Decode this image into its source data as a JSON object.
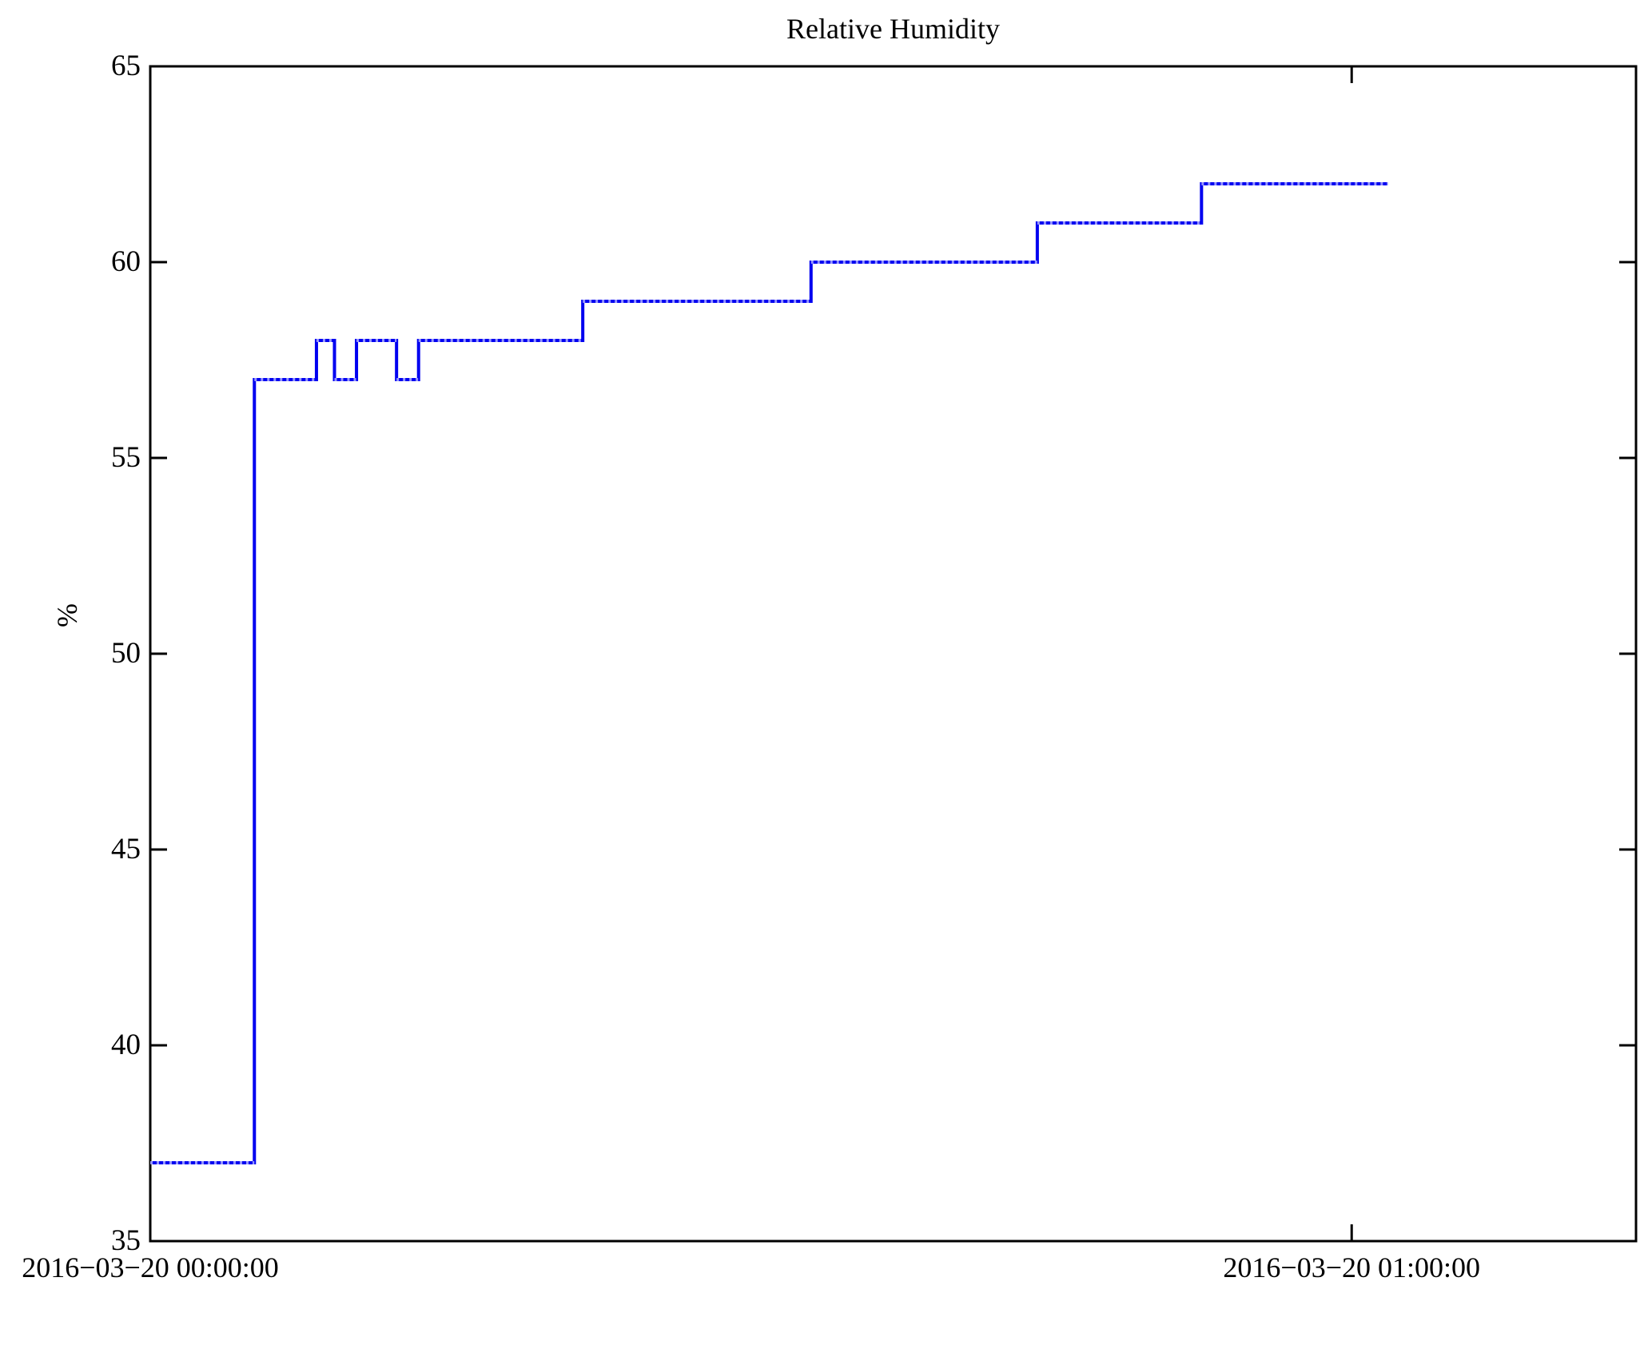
{
  "chart_data": {
    "type": "line",
    "step": true,
    "title": "Relative Humidity",
    "ylabel": "%",
    "background_color": "#ffffff",
    "axis_color": "#000000",
    "line_color": "#0000f0",
    "line_overlay_color": "#9595ff",
    "ylim": [
      35,
      65
    ],
    "yticks": [
      35,
      40,
      45,
      50,
      55,
      60,
      65
    ],
    "xlim_minutes": [
      0,
      74.2
    ],
    "xticks": [
      {
        "minute": 0,
        "label": "2016−03−20 00:00:00"
      },
      {
        "minute": 60,
        "label": "2016−03−20 01:00:00"
      }
    ],
    "series": [
      {
        "name": "relative-humidity",
        "unit": "%",
        "steps": [
          {
            "minute": 0.0,
            "value": 37
          },
          {
            "minute": 5.2,
            "value": 57
          },
          {
            "minute": 8.3,
            "value": 58
          },
          {
            "minute": 9.2,
            "value": 57
          },
          {
            "minute": 10.3,
            "value": 58
          },
          {
            "minute": 12.3,
            "value": 57
          },
          {
            "minute": 13.4,
            "value": 58
          },
          {
            "minute": 21.6,
            "value": 59
          },
          {
            "minute": 33.0,
            "value": 60
          },
          {
            "minute": 44.3,
            "value": 61
          },
          {
            "minute": 52.5,
            "value": 62
          }
        ],
        "end_minute": 61.8
      }
    ],
    "legend": null,
    "grid": false
  }
}
